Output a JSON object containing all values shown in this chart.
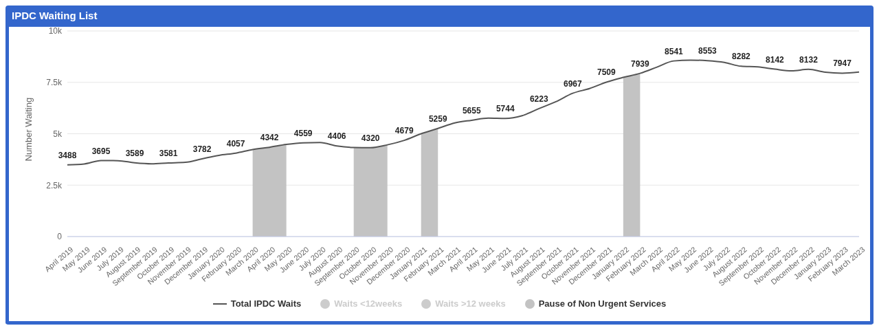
{
  "chart_data": {
    "type": "line",
    "title": "IPDC Waiting List",
    "ylabel": "Number Waiting",
    "categories": [
      "April 2019",
      "May 2019",
      "June 2019",
      "July 2019",
      "August 2019",
      "September 2019",
      "October 2019",
      "November 2019",
      "December 2019",
      "January 2020",
      "February 2020",
      "March 2020",
      "April 2020",
      "May 2020",
      "June 2020",
      "July 2020",
      "August 2020",
      "September 2020",
      "October 2020",
      "November 2020",
      "December 2020",
      "January 2021",
      "February 2021",
      "March 2021",
      "April 2021",
      "May 2021",
      "June 2021",
      "July 2021",
      "August 2021",
      "September 2021",
      "October 2021",
      "November 2021",
      "December 2021",
      "January 2022",
      "February 2022",
      "March 2022",
      "April 2022",
      "May 2022",
      "June 2022",
      "July 2022",
      "August 2022",
      "September 2022",
      "October 2022",
      "November 2022",
      "December 2022",
      "January 2023",
      "February 2023",
      "March 2023"
    ],
    "series": [
      {
        "name": "Total IPDC Waits",
        "color": "#555555",
        "values": [
          3488,
          3530,
          3695,
          3690,
          3589,
          3540,
          3581,
          3610,
          3782,
          3950,
          4057,
          4230,
          4342,
          4480,
          4559,
          4570,
          4406,
          4330,
          4320,
          4460,
          4679,
          5000,
          5259,
          5530,
          5655,
          5760,
          5744,
          5880,
          6223,
          6560,
          6967,
          7200,
          7509,
          7740,
          7939,
          8240,
          8541,
          8580,
          8553,
          8470,
          8282,
          8250,
          8142,
          8060,
          8132,
          7990,
          7947,
          8000
        ],
        "value_labels": [
          "3488",
          null,
          "3695",
          null,
          "3589",
          null,
          "3581",
          null,
          "3782",
          null,
          "4057",
          null,
          "4342",
          null,
          "4559",
          null,
          "4406",
          null,
          "4320",
          null,
          "4679",
          null,
          "5259",
          null,
          "5655",
          null,
          "5744",
          null,
          "6223",
          null,
          "6967",
          null,
          "7509",
          null,
          "7939",
          null,
          "8541",
          null,
          "8553",
          null,
          "8282",
          null,
          "8142",
          null,
          "8132",
          null,
          "7947",
          null
        ]
      },
      {
        "name": "Waits <12weeks",
        "type": "area",
        "color": "#cccccc",
        "values": [
          null,
          null,
          null,
          null,
          null,
          null,
          null,
          null,
          null,
          null,
          null,
          null,
          null,
          null,
          null,
          null,
          null,
          null,
          null,
          null,
          null,
          null,
          null,
          null,
          null,
          null,
          null,
          null,
          null,
          null,
          null,
          null,
          null,
          null,
          null,
          null,
          null,
          null,
          null,
          null,
          null,
          null,
          null,
          null,
          null,
          null,
          null,
          null
        ]
      },
      {
        "name": "Waits >12 weeks",
        "type": "area",
        "color": "#cccccc",
        "values": [
          null,
          null,
          null,
          null,
          null,
          null,
          null,
          null,
          null,
          null,
          null,
          null,
          null,
          null,
          null,
          null,
          null,
          null,
          null,
          null,
          null,
          null,
          null,
          null,
          null,
          null,
          null,
          null,
          null,
          null,
          null,
          null,
          null,
          null,
          null,
          null,
          null,
          null,
          null,
          null,
          null,
          null,
          null,
          null,
          null,
          null,
          null,
          null
        ]
      },
      {
        "name": "Pause of Non Urgent Services",
        "type": "area",
        "color": "#c3c3c3",
        "values": [
          null,
          null,
          null,
          null,
          null,
          null,
          null,
          null,
          null,
          null,
          null,
          4230,
          4342,
          4480,
          null,
          null,
          null,
          4330,
          4320,
          4460,
          null,
          5000,
          5259,
          null,
          null,
          null,
          null,
          null,
          null,
          null,
          null,
          null,
          null,
          7740,
          7939,
          null,
          null,
          null,
          null,
          null,
          null,
          null,
          null,
          null,
          null,
          null,
          null,
          null
        ]
      }
    ],
    "ylim": [
      0,
      10000
    ],
    "yticks": [
      0,
      {
        "value": 2500,
        "label": "2.5k"
      },
      {
        "value": 5000,
        "label": "5k"
      },
      {
        "value": 7500,
        "label": "7.5k"
      },
      {
        "value": 10000,
        "label": "10k"
      }
    ],
    "grid": "y",
    "legend": "bottom",
    "marker": "none",
    "line_style": "solid"
  }
}
